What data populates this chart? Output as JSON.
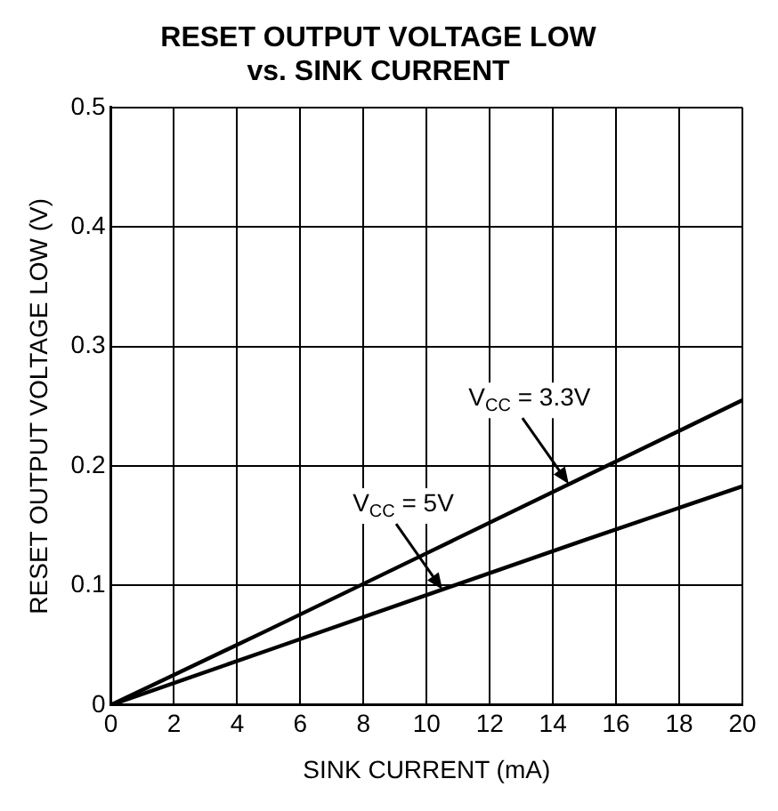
{
  "chart_data": {
    "type": "line",
    "title": "RESET OUTPUT VOLTAGE LOW vs. SINK CURRENT",
    "xlabel": "SINK CURRENT (mA)",
    "ylabel": "RESET OUTPUT VOLTAGE LOW (V)",
    "series": [
      {
        "color": "#000000",
        "x": [
          0,
          5,
          10,
          15,
          20
        ],
        "values": [
          0,
          0.063,
          0.127,
          0.191,
          0.255
        ]
      },
      {
        "color": "#000000",
        "x": [
          0,
          5,
          10,
          15,
          20
        ],
        "values": [
          0,
          0.046,
          0.092,
          0.138,
          0.183
        ]
      }
    ],
    "xlim": [
      0,
      20
    ],
    "xticks": [
      0,
      2,
      4,
      6,
      8,
      10,
      12,
      14,
      16,
      18,
      20
    ],
    "ylim": [
      0,
      0.5
    ],
    "yticks": [
      0,
      0.1,
      0.2,
      0.3,
      0.4,
      0.5
    ],
    "grid": true,
    "legend": false,
    "marker": "none",
    "line_style": "solid",
    "annotations": [
      {
        "text": "V$_{CC}$ = 3.3V",
        "x": 14.5,
        "y": 0.185
      },
      {
        "text": "V$_{CC}$ = 5V",
        "x": 10.5,
        "y": 0.0965
      }
    ]
  }
}
